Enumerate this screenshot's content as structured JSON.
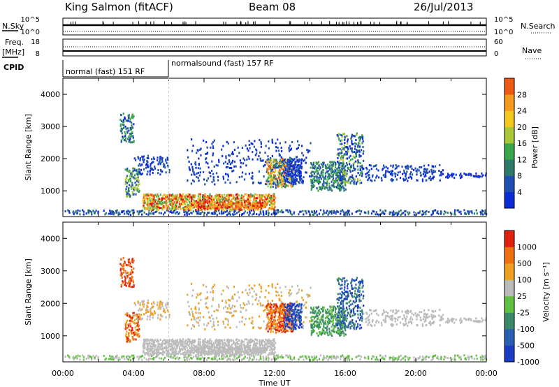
{
  "header": {
    "station": "King Salmon (fitACF)",
    "beam": "Beam 08",
    "date": "26/Jul/2013"
  },
  "noise_panel": {
    "left_label": "N.Sky",
    "right_label": "N.Search",
    "left_ticks": [
      "10^5",
      "10^0"
    ],
    "right_ticks": [
      "10^5",
      "10^0"
    ]
  },
  "freq_panel": {
    "left_label_1": "Freq.",
    "left_label_2": "[MHz]",
    "right_label": "Nave",
    "left_ticks": [
      "18",
      "8"
    ],
    "right_ticks": [
      "60",
      "0"
    ]
  },
  "cpid": {
    "label": "CPID",
    "segments": [
      {
        "text": "normal (fast) 151 RF"
      },
      {
        "text": "normalsound (fast) 157 RF"
      }
    ]
  },
  "time_axis": {
    "title": "Time UT",
    "ticks": [
      "00:00",
      "04:00",
      "08:00",
      "12:00",
      "16:00",
      "20:00",
      "00:00"
    ]
  },
  "colors": {
    "power_scale": [
      "#0a2bd6",
      "#1f4fb0",
      "#2e7a6a",
      "#3aa84a",
      "#a8c83a",
      "#f5c81e",
      "#f59a1e",
      "#ee5a14",
      "#e01010"
    ],
    "velocity_scale": [
      "#1a3cc4",
      "#2a60b0",
      "#3a8a6a",
      "#60c040",
      "#bbbbbb",
      "#f0a020",
      "#f07010",
      "#e02010"
    ]
  },
  "chart_data": [
    {
      "type": "heatmap",
      "name": "power",
      "ylabel": "Slant Range [km]",
      "xlabel": "Time UT",
      "x_range_hours": [
        0,
        24
      ],
      "ylim": [
        200,
        4500
      ],
      "y_ticks": [
        "1000",
        "2000",
        "3000",
        "4000"
      ],
      "colorbar_label": "Power [dB]",
      "colorbar_ticks": [
        "4",
        "8",
        "12",
        "16",
        "20",
        "24",
        "28"
      ],
      "colorbar_range": [
        0,
        32
      ]
    },
    {
      "type": "heatmap",
      "name": "velocity",
      "ylabel": "Slant Range [km]",
      "xlabel": "Time UT",
      "x_range_hours": [
        0,
        24
      ],
      "ylim": [
        200,
        4500
      ],
      "y_ticks": [
        "1000",
        "2000",
        "3000",
        "4000"
      ],
      "colorbar_label": "Velocity [m s⁻¹]",
      "colorbar_ticks": [
        "1000",
        "500",
        "100",
        "25",
        "-25",
        "-100",
        "-500",
        "-1000"
      ]
    }
  ]
}
